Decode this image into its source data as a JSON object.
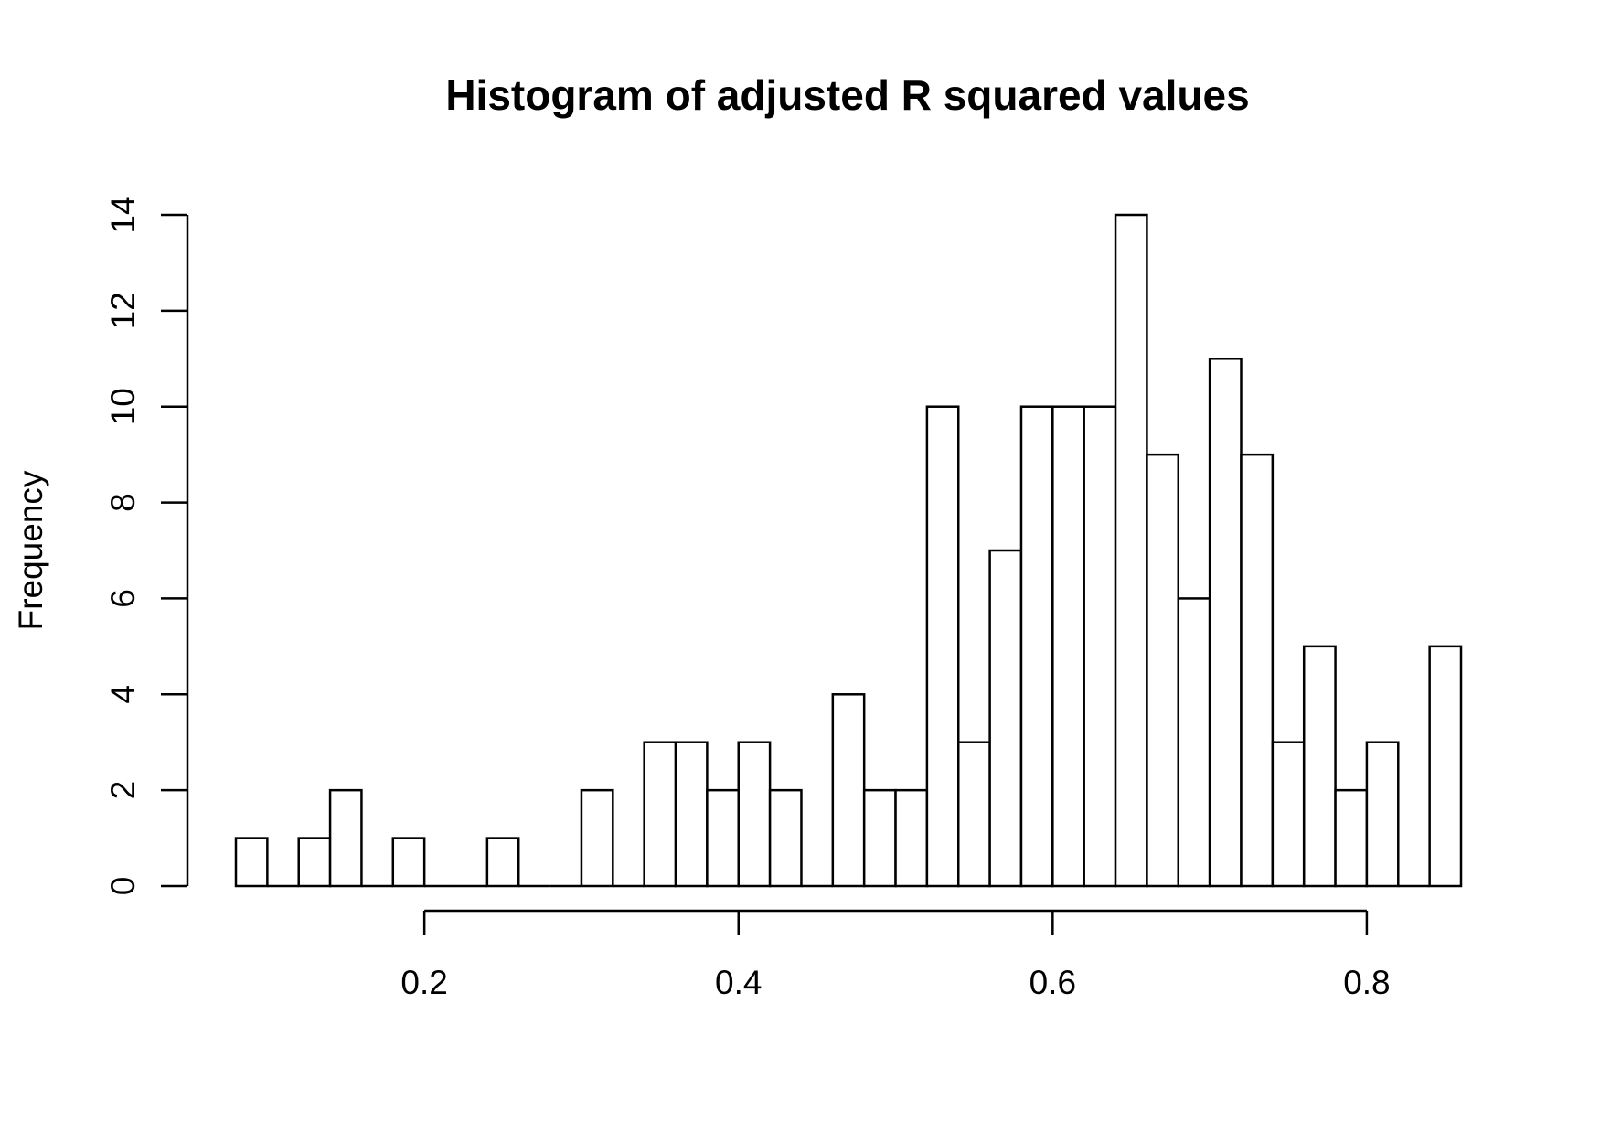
{
  "chart_data": {
    "type": "bar",
    "title": "Histogram of adjusted R squared values",
    "xlabel": "",
    "ylabel": "Frequency",
    "bin_width": 0.02,
    "bins": [
      {
        "x0": 0.08,
        "x1": 0.1,
        "count": 1
      },
      {
        "x0": 0.1,
        "x1": 0.12,
        "count": 0
      },
      {
        "x0": 0.12,
        "x1": 0.14,
        "count": 1
      },
      {
        "x0": 0.14,
        "x1": 0.16,
        "count": 2
      },
      {
        "x0": 0.16,
        "x1": 0.18,
        "count": 0
      },
      {
        "x0": 0.18,
        "x1": 0.2,
        "count": 1
      },
      {
        "x0": 0.2,
        "x1": 0.22,
        "count": 0
      },
      {
        "x0": 0.22,
        "x1": 0.24,
        "count": 0
      },
      {
        "x0": 0.24,
        "x1": 0.26,
        "count": 1
      },
      {
        "x0": 0.26,
        "x1": 0.28,
        "count": 0
      },
      {
        "x0": 0.28,
        "x1": 0.3,
        "count": 0
      },
      {
        "x0": 0.3,
        "x1": 0.32,
        "count": 2
      },
      {
        "x0": 0.32,
        "x1": 0.34,
        "count": 0
      },
      {
        "x0": 0.34,
        "x1": 0.36,
        "count": 3
      },
      {
        "x0": 0.36,
        "x1": 0.38,
        "count": 3
      },
      {
        "x0": 0.38,
        "x1": 0.4,
        "count": 2
      },
      {
        "x0": 0.4,
        "x1": 0.42,
        "count": 3
      },
      {
        "x0": 0.42,
        "x1": 0.44,
        "count": 2
      },
      {
        "x0": 0.44,
        "x1": 0.46,
        "count": 0
      },
      {
        "x0": 0.46,
        "x1": 0.48,
        "count": 4
      },
      {
        "x0": 0.48,
        "x1": 0.5,
        "count": 2
      },
      {
        "x0": 0.5,
        "x1": 0.52,
        "count": 2
      },
      {
        "x0": 0.52,
        "x1": 0.54,
        "count": 10
      },
      {
        "x0": 0.54,
        "x1": 0.56,
        "count": 3
      },
      {
        "x0": 0.56,
        "x1": 0.58,
        "count": 7
      },
      {
        "x0": 0.58,
        "x1": 0.6,
        "count": 10
      },
      {
        "x0": 0.6,
        "x1": 0.62,
        "count": 10
      },
      {
        "x0": 0.62,
        "x1": 0.64,
        "count": 10
      },
      {
        "x0": 0.64,
        "x1": 0.66,
        "count": 14
      },
      {
        "x0": 0.66,
        "x1": 0.68,
        "count": 9
      },
      {
        "x0": 0.68,
        "x1": 0.7,
        "count": 6
      },
      {
        "x0": 0.7,
        "x1": 0.72,
        "count": 11
      },
      {
        "x0": 0.72,
        "x1": 0.74,
        "count": 9
      },
      {
        "x0": 0.74,
        "x1": 0.76,
        "count": 3
      },
      {
        "x0": 0.76,
        "x1": 0.78,
        "count": 5
      },
      {
        "x0": 0.78,
        "x1": 0.8,
        "count": 2
      },
      {
        "x0": 0.8,
        "x1": 0.82,
        "count": 3
      },
      {
        "x0": 0.82,
        "x1": 0.84,
        "count": 0
      },
      {
        "x0": 0.84,
        "x1": 0.86,
        "count": 5
      }
    ],
    "x_ticks": [
      "0.2",
      "0.4",
      "0.6",
      "0.8"
    ],
    "y_ticks": [
      "0",
      "2",
      "4",
      "6",
      "8",
      "10",
      "12",
      "14"
    ],
    "xlim": [
      0.08,
      0.86
    ],
    "ylim": [
      0,
      14
    ],
    "grid": false,
    "legend": "none"
  }
}
